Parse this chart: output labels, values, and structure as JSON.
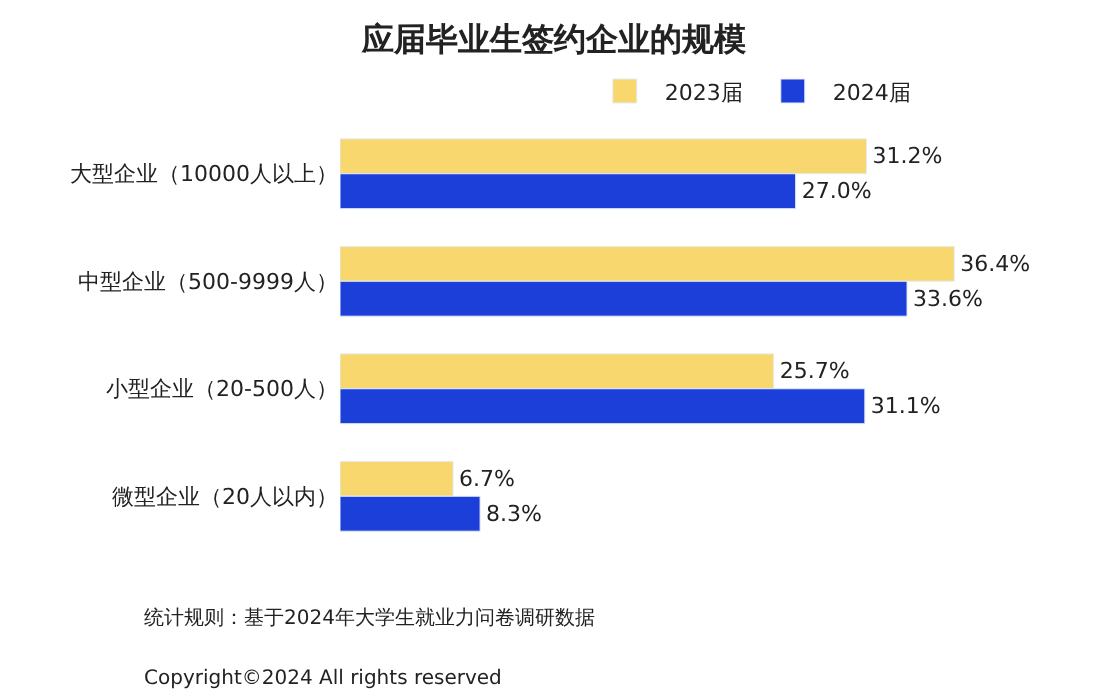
{
  "chart_data": {
    "type": "bar",
    "orientation": "horizontal",
    "title": "应届毕业生签约企业的规模",
    "categories": [
      "大型企业（10000人以上）",
      "中型企业（500-9999人）",
      "小型企业（20-500人）",
      "微型企业（20人以内）"
    ],
    "series": [
      {
        "name": "2023届",
        "color": "#f8d86e",
        "values": [
          31.2,
          36.4,
          25.7,
          6.7
        ],
        "value_labels": [
          "31.2%",
          "36.4%",
          "25.7%",
          "6.7%"
        ]
      },
      {
        "name": "2024届",
        "color": "#1b3fd8",
        "values": [
          27.0,
          33.6,
          31.1,
          8.3
        ],
        "value_labels": [
          "27.0%",
          "33.6%",
          "31.1%",
          "8.3%"
        ]
      }
    ],
    "legend": "top",
    "annotations": [
      "统计规则：基于2024年大学生就业力问卷调研数据",
      "Copyright©2024 All rights reserved"
    ]
  }
}
